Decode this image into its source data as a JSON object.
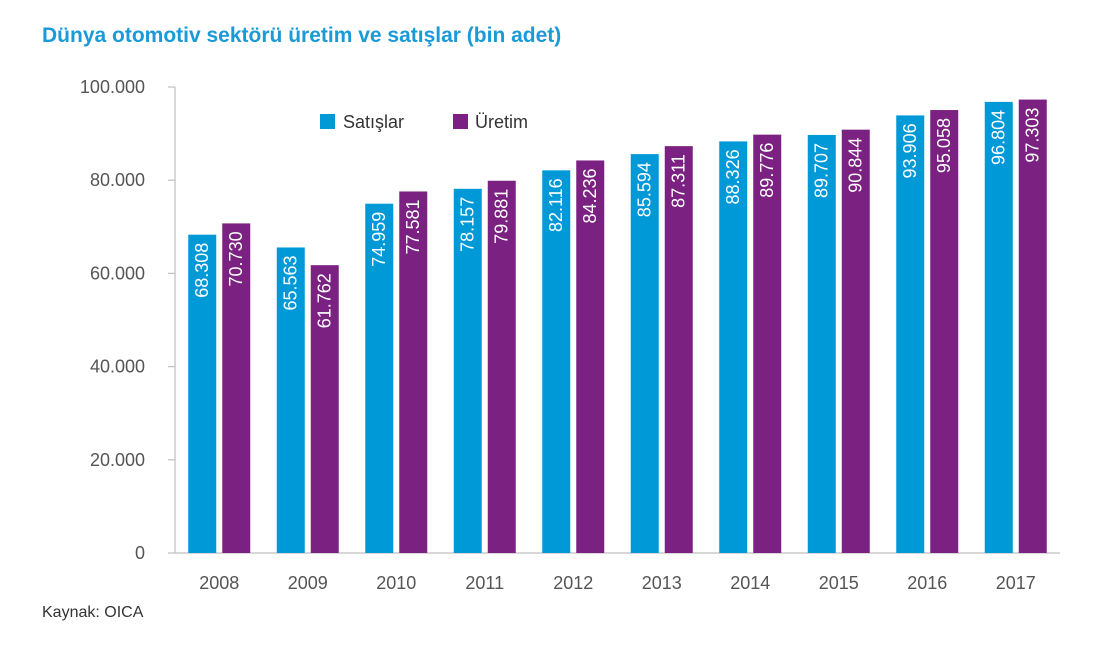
{
  "chart_data": {
    "type": "bar",
    "title": "Dünya otomotiv sektörü üretim ve satışlar (bin adet)",
    "source": "Kaynak: OICA",
    "categories": [
      "2008",
      "2009",
      "2010",
      "2011",
      "2012",
      "2013",
      "2014",
      "2015",
      "2016",
      "2017"
    ],
    "series": [
      {
        "name": "Satışlar",
        "color": "#0099d8",
        "values": [
          68308,
          65563,
          74959,
          78157,
          82116,
          85594,
          88326,
          89707,
          93906,
          96804
        ],
        "labels": [
          "68.308",
          "65.563",
          "74.959",
          "78.157",
          "82.116",
          "85.594",
          "88.326",
          "89.707",
          "93.906",
          "96.804"
        ]
      },
      {
        "name": "Üretim",
        "color": "#7b2182",
        "values": [
          70730,
          61762,
          77581,
          79881,
          84236,
          87311,
          89776,
          90844,
          95058,
          97303
        ],
        "labels": [
          "70.730",
          "61.762",
          "77.581",
          "79.881",
          "84.236",
          "87.311",
          "89.776",
          "90.844",
          "95.058",
          "97.303"
        ]
      }
    ],
    "yticks": [
      {
        "value": 0,
        "label": "0"
      },
      {
        "value": 20000,
        "label": "20.000"
      },
      {
        "value": 40000,
        "label": "40.000"
      },
      {
        "value": 60000,
        "label": "60.000"
      },
      {
        "value": 80000,
        "label": "80.000"
      },
      {
        "value": 100000,
        "label": "100.000"
      }
    ],
    "ylim": [
      0,
      100000
    ],
    "xlabel": "",
    "ylabel": "",
    "grid": false,
    "legend_position": "top-left",
    "axis_color": "#bfbfbf"
  }
}
